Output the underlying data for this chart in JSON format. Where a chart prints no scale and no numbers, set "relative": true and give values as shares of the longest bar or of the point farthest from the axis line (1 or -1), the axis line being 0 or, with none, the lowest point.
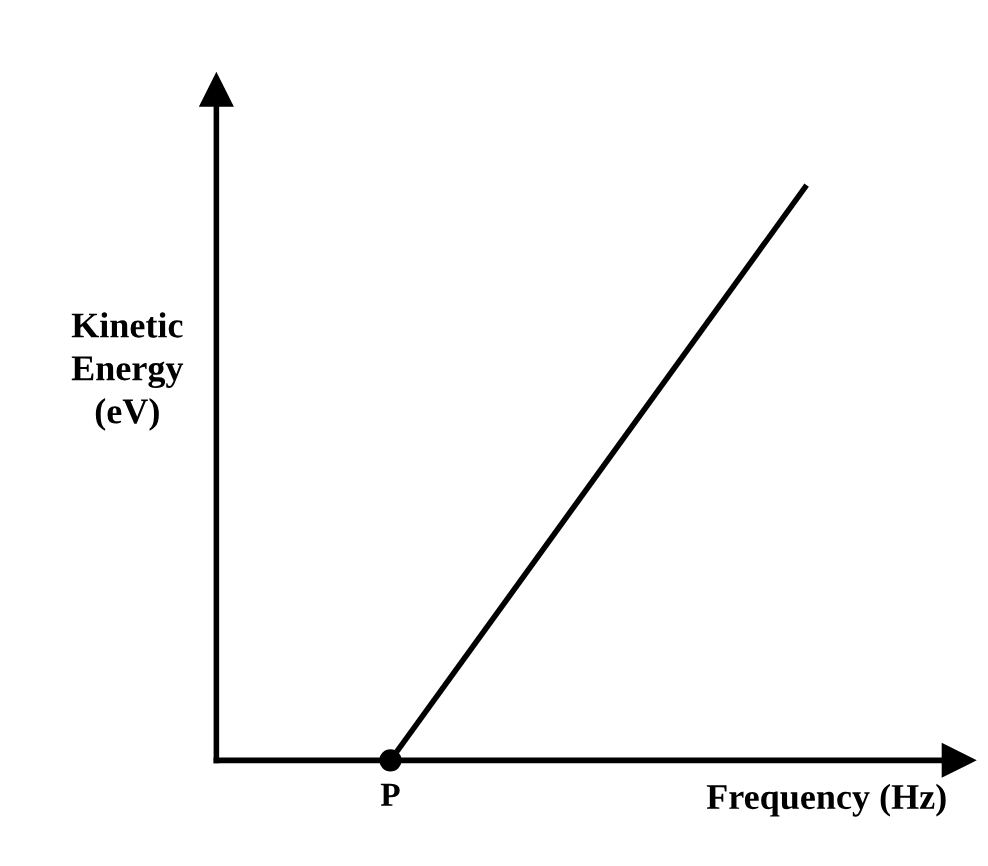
{
  "chart_data": {
    "type": "line",
    "relative": true,
    "xlabel": "Frequency (Hz)",
    "ylabel": "Kinetic\nEnergy\n(eV)",
    "categories": [
      null,
      null
    ],
    "annotations": [
      {
        "text": "P",
        "y": 0
      }
    ],
    "series": [
      {
        "color": "#000000",
        "values": [
          0,
          1
        ]
      }
    ],
    "marker": "circle",
    "line_style": "solid",
    "grid": false,
    "legend": false
  }
}
